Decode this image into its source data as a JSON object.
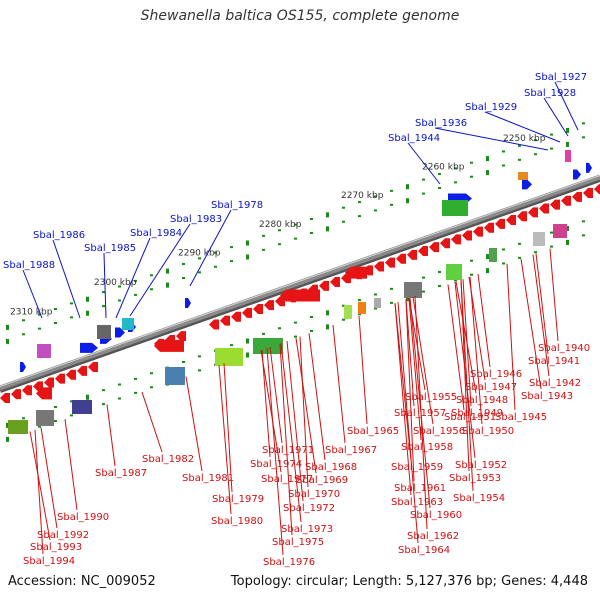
{
  "title": "Shewanella baltica OS155, complete genome",
  "footer": {
    "accession": "Accession: NC_009052",
    "topology": "Topology: circular; Length: 5,127,376 bp; Genes: 4,448"
  },
  "scale_labels": [
    "2250 kbp",
    "2260 kbp",
    "2270 kbp",
    "2280 kbp",
    "2290 kbp",
    "2300 kbp",
    "2310 kbp"
  ],
  "top_genes": [
    "Sbal_1927",
    "Sbal_1928",
    "Sbal_1929",
    "Sbal_1936",
    "Sbal_1944",
    "Sbal_1978",
    "Sbal_1983",
    "Sbal_1984",
    "Sbal_1985",
    "Sbal_1986",
    "Sbal_1988"
  ],
  "bottom_genes": [
    "Sbal_1940",
    "Sbal_1941",
    "Sbal_1942",
    "Sbal_1943",
    "Sbal_1945",
    "Sbal_1946",
    "Sbal_1947",
    "Sbal_1948",
    "Sbal_1949",
    "Sbal_1950",
    "Sbal_1951",
    "Sbal_1952",
    "Sbal_1953",
    "Sbal_1954",
    "Sbal_1955",
    "Sbal_1956",
    "Sbal_1957",
    "Sbal_1958",
    "Sbal_1959",
    "Sbal_1960",
    "Sbal_1961",
    "Sbal_1962",
    "Sbal_1963",
    "Sbal_1964",
    "Sbal_1965",
    "Sbal_1967",
    "Sbal_1968",
    "Sbal_1969",
    "Sbal_1970",
    "Sbal_1971",
    "Sbal_1972",
    "Sbal_1973",
    "Sbal_1974",
    "Sbal_1975",
    "Sbal_1976",
    "Sbal_1977",
    "Sbal_1979",
    "Sbal_1980",
    "Sbal_1981",
    "Sbal_1982",
    "Sbal_1987",
    "Sbal_1990",
    "Sbal_1992",
    "Sbal_1993",
    "Sbal_1994"
  ],
  "colors": {
    "backbone": "#8a8a8a",
    "forward_gene": "#0a1ee6",
    "reverse_gene": "#e61414",
    "tick": "#1a8a1a",
    "top_label": "#0a14c8",
    "bottom_label": "#d01010"
  }
}
